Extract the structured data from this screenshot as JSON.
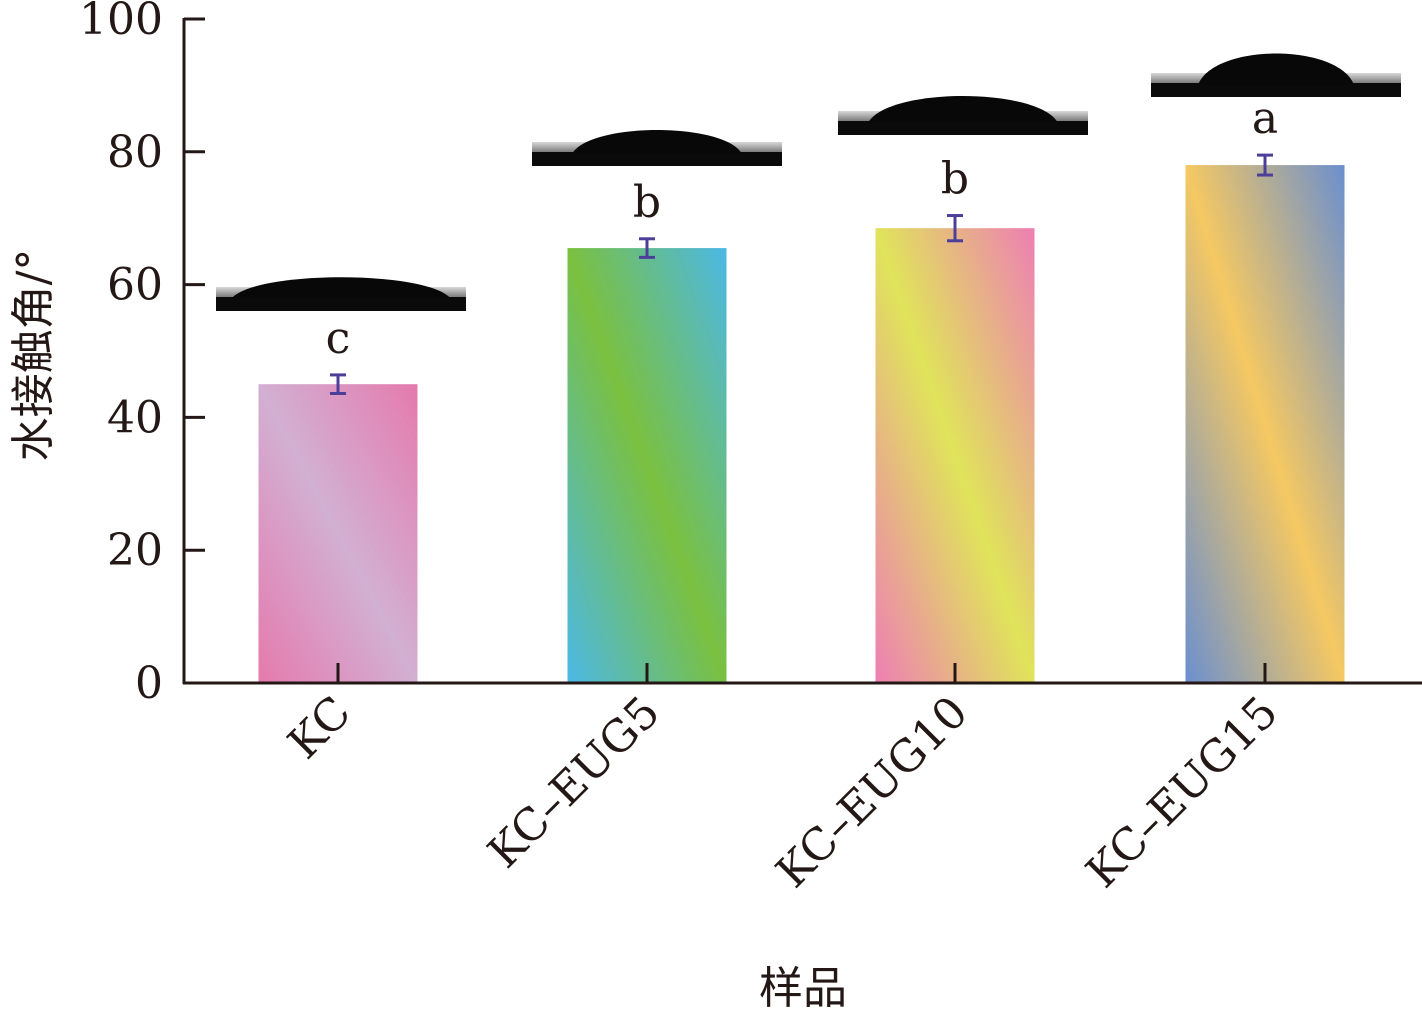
{
  "chart_data": {
    "type": "bar",
    "title": "",
    "xlabel": "样品",
    "ylabel": "水接触角/°",
    "ylim": [
      0,
      100
    ],
    "yticks": [
      "0",
      "20",
      "40",
      "60",
      "80",
      "100"
    ],
    "categories": [
      "KC",
      "KC–EUG5",
      "KC–EUG10",
      "KC–EUG15"
    ],
    "values": [
      45.0,
      65.5,
      68.5,
      78.0
    ],
    "errors": [
      1.4,
      1.4,
      1.9,
      1.5
    ],
    "significance_letters": [
      "c",
      "b",
      "b",
      "a"
    ],
    "grid": false,
    "colors": {
      "error_bar": "#4b3f9a",
      "axis": "#231815",
      "bar_gradients": [
        [
          "#e57aad",
          "#d2b0d3",
          "#e57aad"
        ],
        [
          "#4cb8e6",
          "#7ac03f",
          "#4cb8e6"
        ],
        [
          "#ee7fb4",
          "#e0e45a",
          "#ee7fb4"
        ],
        [
          "#6b8fcf",
          "#f5c862",
          "#6b8fcf"
        ]
      ]
    }
  }
}
